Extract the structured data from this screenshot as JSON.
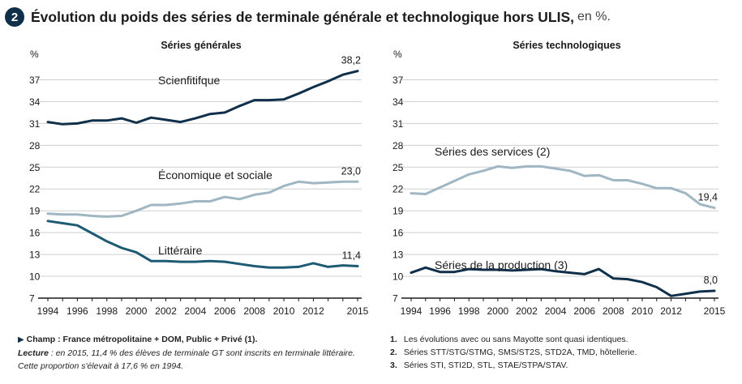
{
  "header": {
    "number": "2",
    "title": "Évolution du poids des séries de terminale générale et technologique hors ULIS,",
    "suffix": "en %."
  },
  "left_notes": {
    "champ": "Champ : France métropolitaine + DOM, Public + Privé (1).",
    "lecture_label": "Lecture",
    "lecture_text": " : en 2015, 11,4 % des élèves de terminale GT sont inscrits en terminale littéraire.",
    "lecture_line2": "Cette proportion s'élevait à 17,6 % en 1994."
  },
  "right_notes": [
    {
      "num": "1.",
      "text": "Les évolutions avec ou sans Mayotte sont quasi identiques."
    },
    {
      "num": "2.",
      "text": "Séries STT/STG/STMG, SMS/ST2S, STD2A, TMD, hôtellerie."
    },
    {
      "num": "3.",
      "text": "Séries STI, STI2D, STL, STAE/STPA/STAV."
    }
  ],
  "chart_data": [
    {
      "type": "line",
      "title": "Séries générales",
      "ylabel": "%",
      "ylim": [
        7,
        38.5
      ],
      "yticks": [
        "37",
        "34",
        "31",
        "28",
        "25",
        "22",
        "19",
        "16",
        "13",
        "10",
        "7"
      ],
      "xticks": [
        "1994",
        "1996",
        "1998",
        "2000",
        "2002",
        "2004",
        "2006",
        "2008",
        "2010",
        "2012",
        "2015"
      ],
      "x": [
        1994,
        1995,
        1996,
        1997,
        1998,
        1999,
        2000,
        2001,
        2002,
        2003,
        2004,
        2005,
        2006,
        2007,
        2008,
        2009,
        2010,
        2011,
        2012,
        2013,
        2014,
        2015
      ],
      "grid": true,
      "series": [
        {
          "name": "Scienfitifque",
          "end_label": "38,2",
          "color": "#0f2f4a",
          "values": [
            31.2,
            30.9,
            31.0,
            31.4,
            31.4,
            31.7,
            31.1,
            31.8,
            31.5,
            31.2,
            31.7,
            32.3,
            32.5,
            33.4,
            34.2,
            34.2,
            34.3,
            35.1,
            36.0,
            36.8,
            37.7,
            38.2
          ]
        },
        {
          "name": "Économique et sociale",
          "end_label": "23,0",
          "color": "#9fb6c3",
          "values": [
            18.6,
            18.5,
            18.5,
            18.3,
            18.2,
            18.3,
            19.0,
            19.8,
            19.8,
            20.0,
            20.3,
            20.3,
            20.9,
            20.6,
            21.2,
            21.5,
            22.4,
            23.0,
            22.8,
            22.9,
            23.0,
            23.0
          ]
        },
        {
          "name": "Littéraire",
          "end_label": "11,4",
          "color": "#1d5a73",
          "values": [
            17.6,
            17.3,
            17.0,
            15.9,
            14.8,
            13.9,
            13.3,
            12.1,
            12.1,
            12.0,
            12.0,
            12.1,
            12.0,
            11.7,
            11.4,
            11.2,
            11.2,
            11.3,
            11.8,
            11.3,
            11.5,
            11.4
          ]
        }
      ]
    },
    {
      "type": "line",
      "title": "Séries technologiques",
      "ylabel": "%",
      "ylim": [
        7,
        38.5
      ],
      "yticks": [
        "37",
        "34",
        "31",
        "28",
        "25",
        "22",
        "19",
        "16",
        "13",
        "10",
        "7"
      ],
      "xticks": [
        "1994",
        "1996",
        "1998",
        "2000",
        "2002",
        "2004",
        "2006",
        "2008",
        "2010",
        "2012",
        "2015"
      ],
      "x": [
        1994,
        1995,
        1996,
        1997,
        1998,
        1999,
        2000,
        2001,
        2002,
        2003,
        2004,
        2005,
        2006,
        2007,
        2008,
        2009,
        2010,
        2011,
        2012,
        2013,
        2014,
        2015
      ],
      "grid": true,
      "series": [
        {
          "name": "Séries des services (2)",
          "end_label": "19,4",
          "color": "#9fb6c3",
          "values": [
            21.4,
            21.3,
            22.2,
            23.1,
            24.0,
            24.5,
            25.1,
            24.9,
            25.1,
            25.1,
            24.8,
            24.5,
            23.8,
            23.9,
            23.2,
            23.2,
            22.7,
            22.1,
            22.1,
            21.4,
            19.9,
            19.4
          ]
        },
        {
          "name": "Séries de la production (3)",
          "end_label": "8,0",
          "color": "#0f2f4a",
          "values": [
            10.5,
            11.2,
            10.6,
            10.6,
            11.0,
            10.9,
            10.9,
            10.8,
            10.9,
            11.0,
            10.7,
            10.5,
            10.3,
            11.0,
            9.7,
            9.6,
            9.2,
            8.5,
            7.3,
            7.6,
            7.9,
            8.0
          ]
        }
      ]
    }
  ]
}
